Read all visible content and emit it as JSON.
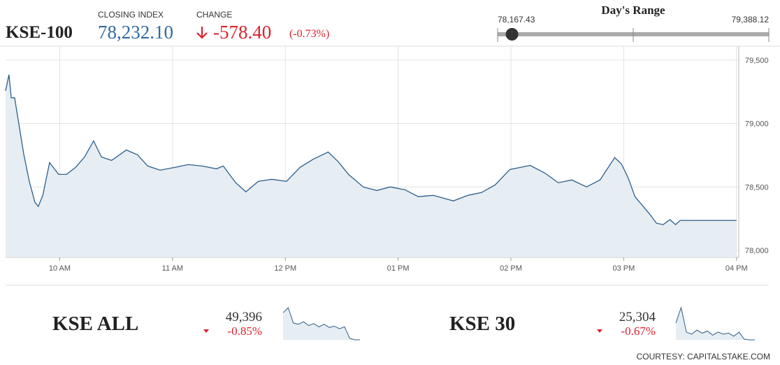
{
  "header": {
    "name": "KSE-100",
    "closing_label": "CLOSING INDEX",
    "closing": {
      "value": 78232.1,
      "label": "78,232.10"
    },
    "change_label": "CHANGE",
    "change": "-578.40",
    "change_percent": "(-0.73%)"
  },
  "day_range": {
    "title": "Day's Range",
    "low": {
      "value": 78167.43,
      "label": "78,167.43"
    },
    "high": {
      "value": 79388.12,
      "label": "79,388.12"
    }
  },
  "chart_data": {
    "type": "area",
    "color": "#2d5f8a",
    "fill": "#e6edf3",
    "grid": true,
    "x": [
      9.52,
      9.55,
      9.57,
      9.6,
      9.64,
      9.68,
      9.73,
      9.78,
      9.81,
      9.85,
      9.91,
      9.99,
      10.06,
      10.14,
      10.22,
      10.3,
      10.37,
      10.46,
      10.59,
      10.69,
      10.78,
      10.89,
      11.02,
      11.14,
      11.26,
      11.39,
      11.45,
      11.56,
      11.65,
      11.76,
      11.88,
      12.01,
      12.13,
      12.25,
      12.38,
      12.47,
      12.56,
      12.69,
      12.81,
      12.93,
      13.06,
      13.18,
      13.31,
      13.49,
      13.62,
      13.74,
      13.86,
      13.99,
      14.17,
      14.3,
      14.42,
      14.54,
      14.67,
      14.79,
      14.92,
      14.98,
      15.04,
      15.1,
      15.23,
      15.29,
      15.35,
      15.41,
      15.46,
      15.5,
      16.0
    ],
    "values": [
      79258,
      79385,
      79203,
      79203,
      78983,
      78764,
      78544,
      78379,
      78346,
      78434,
      78692,
      78599,
      78599,
      78654,
      78736,
      78863,
      78736,
      78709,
      78791,
      78753,
      78665,
      78632,
      78654,
      78676,
      78665,
      78643,
      78665,
      78533,
      78461,
      78544,
      78560,
      78544,
      78654,
      78720,
      78775,
      78698,
      78599,
      78500,
      78472,
      78500,
      78478,
      78423,
      78434,
      78390,
      78434,
      78456,
      78516,
      78637,
      78670,
      78610,
      78533,
      78555,
      78500,
      78555,
      78731,
      78681,
      78571,
      78423,
      78286,
      78214,
      78203,
      78242,
      78203,
      78236,
      78236
    ],
    "xlim": [
      9.52,
      16.02
    ],
    "ylim": [
      77945,
      79610
    ],
    "xticks": [
      {
        "value": 10,
        "label": "10 AM"
      },
      {
        "value": 11,
        "label": "11 AM"
      },
      {
        "value": 12,
        "label": "12 PM"
      },
      {
        "value": 13,
        "label": "01 PM"
      },
      {
        "value": 14,
        "label": "02 PM"
      },
      {
        "value": 15,
        "label": "03 PM"
      },
      {
        "value": 16,
        "label": "04 PM"
      }
    ],
    "yticks": [
      {
        "value": 78000,
        "label": "78,000"
      },
      {
        "value": 78500,
        "label": "78,500"
      },
      {
        "value": 79000,
        "label": "79,000"
      },
      {
        "value": 79500,
        "label": "79,500"
      }
    ]
  },
  "indices": [
    {
      "name": "KSE ALL",
      "value": "49,396",
      "change_percent": "-0.85%",
      "spark": [
        49820,
        49900,
        49660,
        49640,
        49680,
        49620,
        49650,
        49600,
        49640,
        49590,
        49610,
        49570,
        49600,
        49420,
        49396,
        49396
      ]
    },
    {
      "name": "KSE 30",
      "value": "25,304",
      "change_percent": "-0.67%",
      "spark": [
        25470,
        25620,
        25380,
        25360,
        25400,
        25370,
        25390,
        25350,
        25380,
        25360,
        25370,
        25340,
        25380,
        25310,
        25304,
        25304
      ]
    }
  ],
  "footer": "COURTESY: CAPITALSTAKE.COM"
}
